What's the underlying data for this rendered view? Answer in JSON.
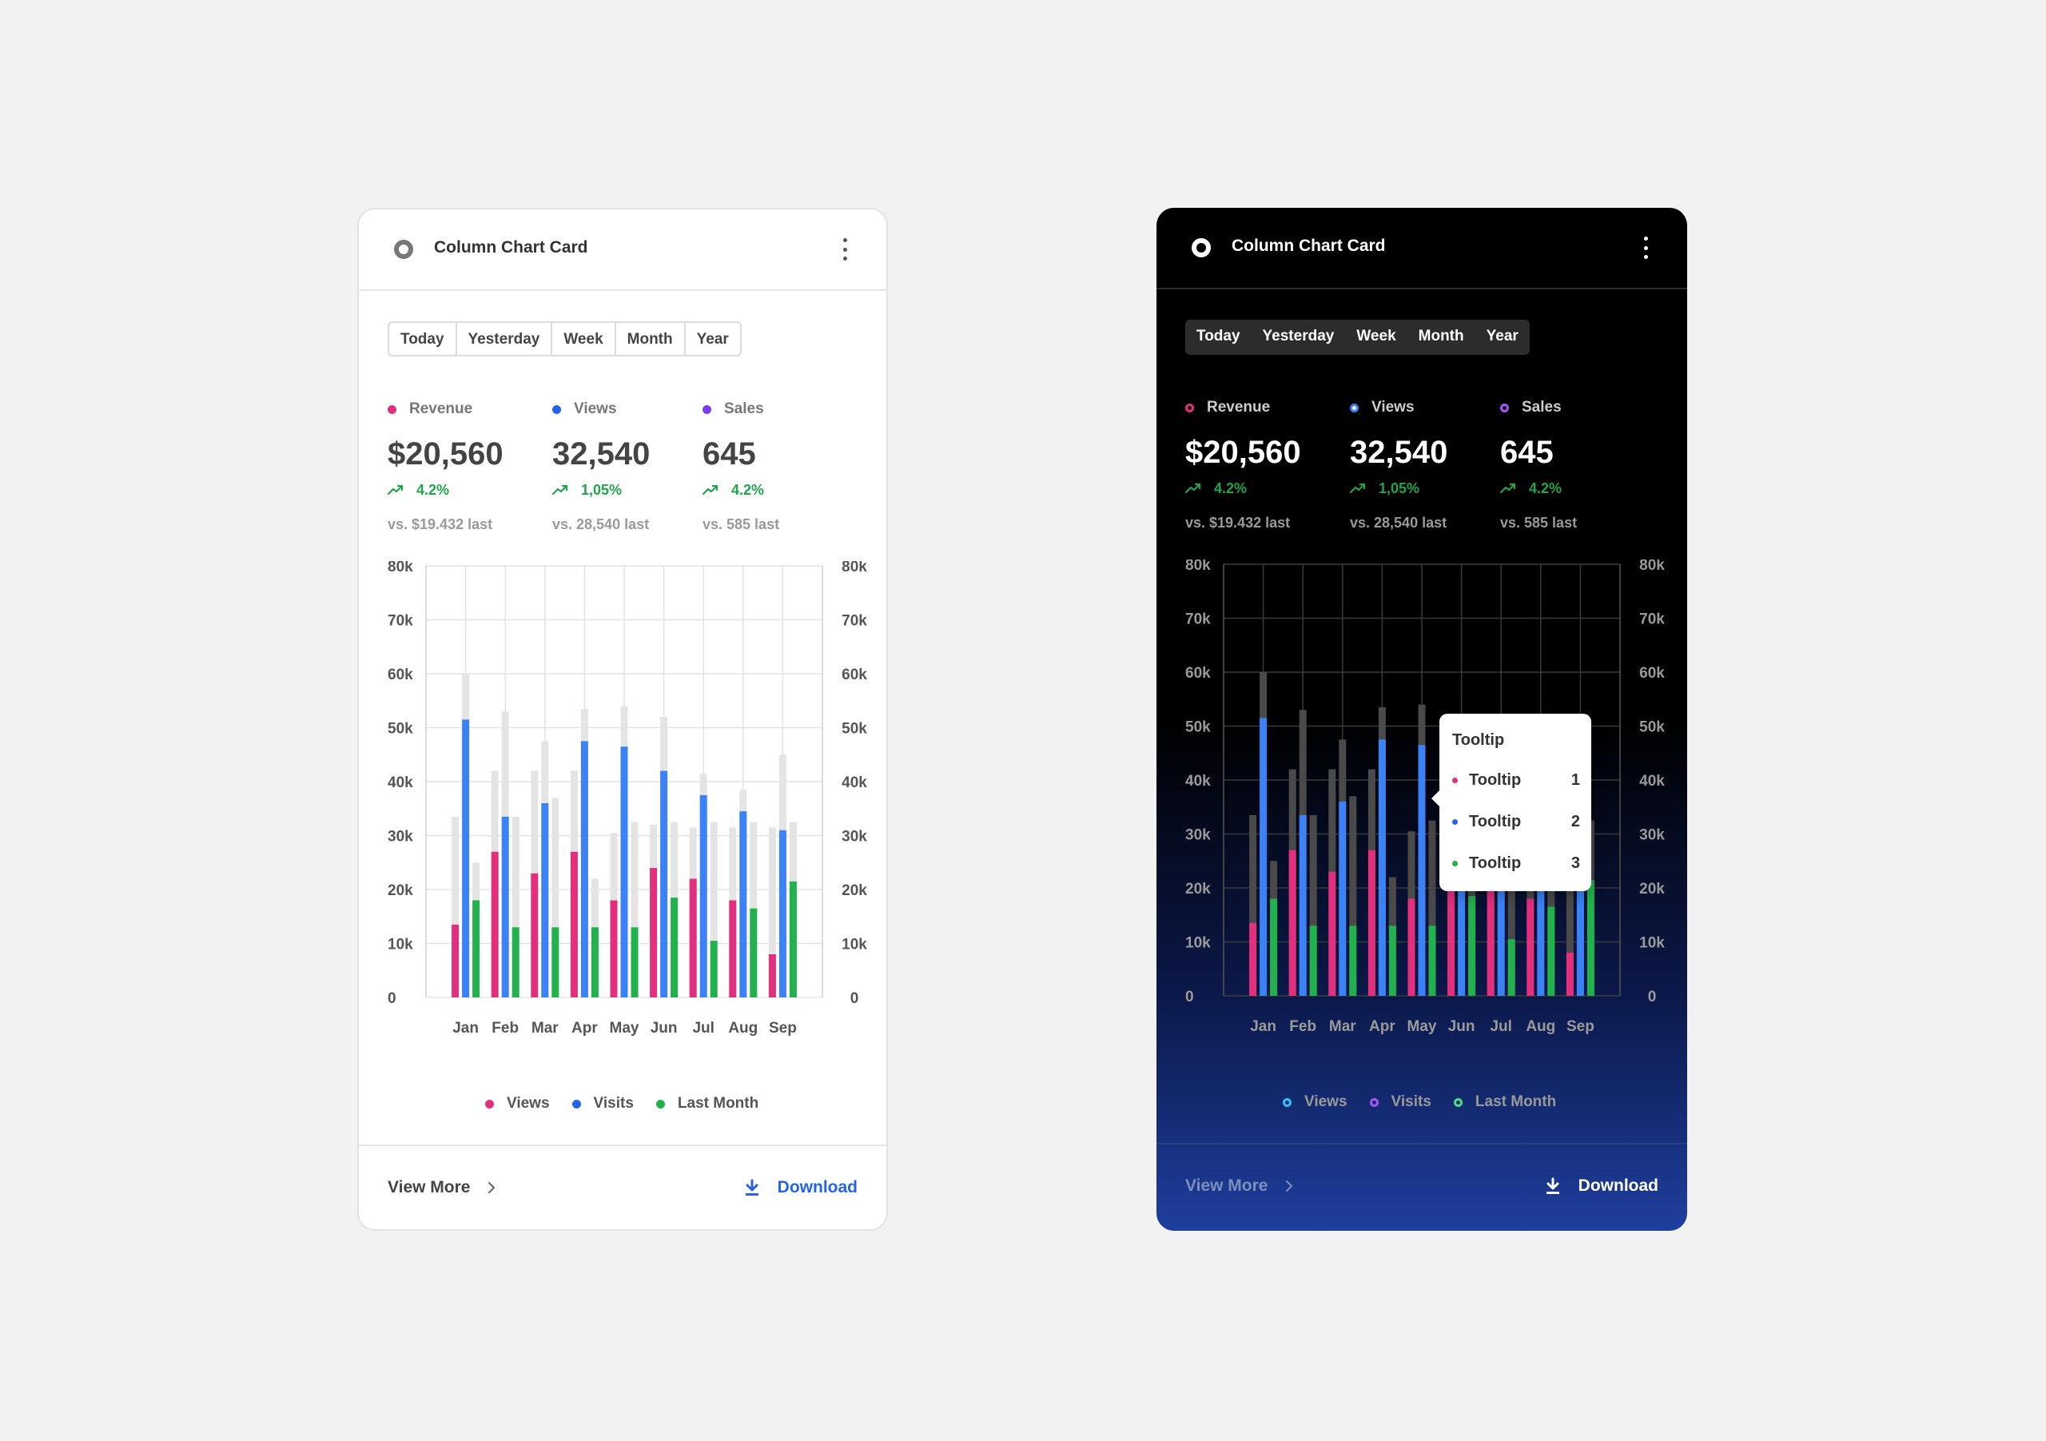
{
  "colors": {
    "pink": "#e2307e",
    "blue": "#2563eb",
    "blue_bar": "#3b82f6",
    "green": "#22b14c",
    "purple": "#7c3aed",
    "grey_bar_light": "#e4e4e4",
    "grey_bar_dark": "#4a4a4a",
    "positive": "#1fa64a"
  },
  "cards": [
    {
      "theme": "light",
      "title": "Column Chart Card",
      "tabs": [
        "Today",
        "Yesterday",
        "Week",
        "Month",
        "Year"
      ],
      "metrics": [
        {
          "label": "Revenue",
          "value": "$20,560",
          "change": "4.2%",
          "vs": "vs. $19.432 last"
        },
        {
          "label": "Views",
          "value": "32,540",
          "change": "1,05%",
          "vs": "vs. 28,540 last"
        },
        {
          "label": "Sales",
          "value": "645",
          "change": "4.2%",
          "vs": "vs. 585 last"
        }
      ],
      "legend": [
        "Views",
        "Visits",
        "Last Month"
      ],
      "footer": {
        "view_more": "View More",
        "download": "Download"
      }
    },
    {
      "theme": "dark",
      "title": "Column Chart Card",
      "tabs": [
        "Today",
        "Yesterday",
        "Week",
        "Month",
        "Year"
      ],
      "metrics": [
        {
          "label": "Revenue",
          "value": "$20,560",
          "change": "4.2%",
          "vs": "vs. $19.432 last"
        },
        {
          "label": "Views",
          "value": "32,540",
          "change": "1,05%",
          "vs": "vs. 28,540 last"
        },
        {
          "label": "Sales",
          "value": "645",
          "change": "4.2%",
          "vs": "vs. 585 last"
        }
      ],
      "legend": [
        "Views",
        "Visits",
        "Last Month"
      ],
      "footer": {
        "view_more": "View More",
        "download": "Download"
      },
      "tooltip": {
        "title": "Tooltip",
        "rows": [
          {
            "label": "Tooltip",
            "value": "1"
          },
          {
            "label": "Tooltip",
            "value": "2"
          },
          {
            "label": "Tooltip",
            "value": "3"
          }
        ]
      }
    }
  ],
  "chart_data": {
    "type": "bar",
    "categories": [
      "Jan",
      "Feb",
      "Mar",
      "Apr",
      "May",
      "Jun",
      "Jul",
      "Aug",
      "Sep"
    ],
    "ylim": [
      0,
      80000
    ],
    "yticks": [
      "0",
      "10k",
      "20k",
      "30k",
      "40k",
      "50k",
      "60k",
      "70k",
      "80k"
    ],
    "y2ticks": [
      "0",
      "10k",
      "20k",
      "30k",
      "40k",
      "50k",
      "60k",
      "70k",
      "80k"
    ],
    "grid": true,
    "legend_position": "bottom",
    "series": [
      {
        "name": "Views",
        "color": "#e2307e",
        "values": [
          13500,
          27000,
          23000,
          27000,
          18000,
          24000,
          22000,
          18000,
          8000
        ]
      },
      {
        "name": "Visits",
        "color": "#3b82f6",
        "values": [
          51500,
          33500,
          36000,
          47500,
          46500,
          42000,
          37500,
          34500,
          31000
        ]
      },
      {
        "name": "Last Month",
        "color": "#22b14c",
        "values": [
          18000,
          13000,
          13000,
          13000,
          13000,
          18500,
          10500,
          16500,
          21500
        ]
      }
    ],
    "background_totals": [
      [
        33500,
        60000,
        25000
      ],
      [
        42000,
        53000,
        33500
      ],
      [
        42000,
        47500,
        37000
      ],
      [
        42000,
        53500,
        22000
      ],
      [
        30500,
        54000,
        32500
      ],
      [
        32000,
        52000,
        32500
      ],
      [
        31500,
        41500,
        32500
      ],
      [
        31500,
        38500,
        32500
      ],
      [
        31500,
        45000,
        32500
      ]
    ]
  }
}
